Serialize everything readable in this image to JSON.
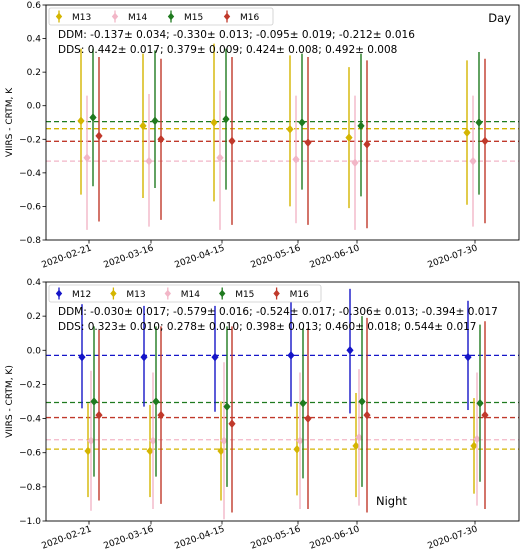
{
  "chart_data": [
    {
      "type": "errorbar",
      "title": "Day",
      "ylabel": "VIIRS - CRTM, K",
      "ylim": [
        -0.8,
        0.6
      ],
      "yticks": [
        0.6,
        0.4,
        0.2,
        0.0,
        -0.2,
        -0.4,
        -0.6,
        -0.8
      ],
      "ytick_labels": [
        "0.6",
        "0.4",
        "0.2",
        "0.0",
        "−0.2",
        "−0.4",
        "−0.6",
        "−0.8"
      ],
      "categories": [
        "2020-02-21",
        "2020-03-16",
        "2020-04-15",
        "2020-05-16",
        "2020-06-10",
        "2020-07-30"
      ],
      "stats": [
        "DDM: -0.137± 0.034; -0.330± 0.013; -0.095± 0.019; -0.212± 0.016",
        "DDS:  0.442± 0.017;  0.379± 0.009;  0.424± 0.008;  0.492± 0.008"
      ],
      "legend": {
        "placement": "top-left"
      },
      "series": [
        {
          "name": "M13",
          "color": "#d4b500",
          "mean": -0.137,
          "values": [
            -0.09,
            -0.12,
            -0.1,
            -0.14,
            -0.19,
            -0.16
          ],
          "lower": [
            -0.53,
            -0.55,
            -0.57,
            -0.6,
            -0.61,
            -0.59
          ],
          "upper": [
            0.34,
            0.31,
            0.37,
            0.3,
            0.23,
            0.27
          ]
        },
        {
          "name": "M14",
          "color": "#f2b6c7",
          "mean": -0.33,
          "values": [
            -0.31,
            -0.33,
            -0.31,
            -0.32,
            -0.34,
            -0.33
          ],
          "lower": [
            -0.74,
            -0.72,
            -0.74,
            -0.7,
            -0.74,
            -0.72
          ],
          "upper": [
            0.06,
            0.07,
            0.09,
            0.06,
            0.06,
            0.06
          ]
        },
        {
          "name": "M15",
          "color": "#1f7a1f",
          "mean": -0.095,
          "values": [
            -0.07,
            -0.09,
            -0.08,
            -0.1,
            -0.12,
            -0.1
          ],
          "lower": [
            -0.48,
            -0.49,
            -0.5,
            -0.5,
            -0.54,
            -0.53
          ],
          "upper": [
            0.34,
            0.33,
            0.34,
            0.31,
            0.31,
            0.32
          ]
        },
        {
          "name": "M16",
          "color": "#c0392b",
          "mean": -0.212,
          "values": [
            -0.18,
            -0.2,
            -0.21,
            -0.22,
            -0.23,
            -0.21
          ],
          "lower": [
            -0.69,
            -0.68,
            -0.71,
            -0.71,
            -0.73,
            -0.7
          ],
          "upper": [
            0.29,
            0.28,
            0.29,
            0.29,
            0.27,
            0.28
          ]
        }
      ]
    },
    {
      "type": "errorbar",
      "title": "Night",
      "ylabel": "VIIRS - CRTM, K)",
      "ylim": [
        -1.0,
        0.4
      ],
      "yticks": [
        0.4,
        0.2,
        0.0,
        -0.2,
        -0.4,
        -0.6,
        -0.8,
        -1.0
      ],
      "ytick_labels": [
        "0.4",
        "0.2",
        "0.0",
        "−0.2",
        "−0.4",
        "−0.6",
        "−0.8",
        "−1.0"
      ],
      "categories": [
        "2020-02-21",
        "2020-03-16",
        "2020-04-15",
        "2020-05-16",
        "2020-06-10",
        "2020-07-30"
      ],
      "stats": [
        "DDM: -0.030± 0.017; -0.579± 0.016; -0.524± 0.017; -0.306± 0.013; -0.394± 0.017",
        "DDS:  0.323± 0.010;  0.278± 0.010;  0.398± 0.013;  0.460± 0.018;  0.544± 0.017"
      ],
      "legend": {
        "placement": "top-left"
      },
      "series": [
        {
          "name": "M12",
          "color": "#1515c8",
          "mean": -0.03,
          "values": [
            -0.04,
            -0.04,
            -0.04,
            -0.03,
            0.0,
            -0.04
          ],
          "lower": [
            -0.34,
            -0.33,
            -0.36,
            -0.33,
            -0.37,
            -0.35
          ],
          "upper": [
            0.27,
            0.26,
            0.26,
            0.29,
            0.36,
            0.29
          ]
        },
        {
          "name": "M13",
          "color": "#d4b500",
          "mean": -0.579,
          "values": [
            -0.59,
            -0.59,
            -0.59,
            -0.58,
            -0.56,
            -0.56
          ],
          "lower": [
            -0.86,
            -0.86,
            -0.88,
            -0.85,
            -0.86,
            -0.84
          ],
          "upper": [
            -0.31,
            -0.32,
            -0.3,
            -0.31,
            -0.25,
            -0.28
          ]
        },
        {
          "name": "M14",
          "color": "#f2b6c7",
          "mean": -0.524,
          "values": [
            -0.53,
            -0.53,
            -0.53,
            -0.53,
            -0.51,
            -0.52
          ],
          "lower": [
            -0.94,
            -0.93,
            -0.99,
            -0.93,
            -0.91,
            -0.91
          ],
          "upper": [
            -0.12,
            -0.13,
            -0.07,
            -0.13,
            -0.11,
            -0.13
          ]
        },
        {
          "name": "M15",
          "color": "#1f7a1f",
          "mean": -0.306,
          "values": [
            -0.3,
            -0.3,
            -0.33,
            -0.31,
            -0.3,
            -0.31
          ],
          "lower": [
            -0.74,
            -0.74,
            -0.8,
            -0.75,
            -0.8,
            -0.77
          ],
          "upper": [
            0.14,
            0.14,
            0.14,
            0.13,
            0.2,
            0.15
          ]
        },
        {
          "name": "M16",
          "color": "#c0392b",
          "mean": -0.394,
          "values": [
            -0.38,
            -0.38,
            -0.43,
            -0.4,
            -0.38,
            -0.38
          ],
          "lower": [
            -0.88,
            -0.9,
            -0.95,
            -0.93,
            -0.95,
            -0.93
          ],
          "upper": [
            0.12,
            0.14,
            0.14,
            0.13,
            0.19,
            0.17
          ]
        }
      ]
    }
  ]
}
